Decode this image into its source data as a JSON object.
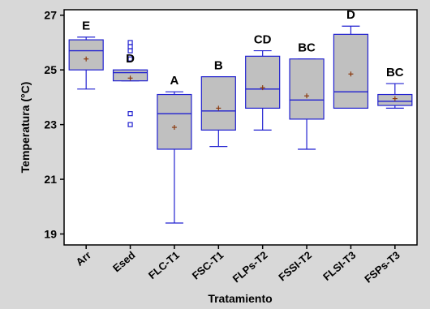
{
  "chart_data": {
    "type": "box",
    "xlabel": "Tratamiento",
    "ylabel": "Temperatura (°C)",
    "ylim": [
      18.6,
      27.2
    ],
    "yticks": [
      19,
      21,
      23,
      25,
      27
    ],
    "grid": false,
    "colors": {
      "box_fill": "#c0c0c0",
      "box_stroke": "#2020d0",
      "mean_marker": "#8b3a0f"
    },
    "categories": [
      "Arr",
      "Esed",
      "FLC-T1",
      "FSC-T1",
      "FLPs-T2",
      "FSSI-T2",
      "FLSI-T3",
      "FSPs-T3"
    ],
    "boxes": [
      {
        "category": "Arr",
        "whisker_low": 24.3,
        "q1": 25.0,
        "median": 25.7,
        "q3": 26.1,
        "whisker_high": 26.2,
        "mean": 25.4,
        "outliers": [],
        "letter": "E"
      },
      {
        "category": "Esed",
        "whisker_low": 24.6,
        "q1": 24.6,
        "median": 24.9,
        "q3": 25.0,
        "whisker_high": 25.0,
        "mean": 24.7,
        "outliers": [
          23.0,
          23.4,
          25.4,
          25.7,
          25.85,
          26.0
        ],
        "letter": "D"
      },
      {
        "category": "FLC-T1",
        "whisker_low": 19.4,
        "q1": 22.1,
        "median": 23.4,
        "q3": 24.1,
        "whisker_high": 24.2,
        "mean": 22.9,
        "outliers": [],
        "letter": "A"
      },
      {
        "category": "FSC-T1",
        "whisker_low": 22.2,
        "q1": 22.8,
        "median": 23.5,
        "q3": 24.75,
        "whisker_high": 24.75,
        "mean": 23.6,
        "outliers": [],
        "letter": "B"
      },
      {
        "category": "FLPs-T2",
        "whisker_low": 22.8,
        "q1": 23.6,
        "median": 24.3,
        "q3": 25.5,
        "whisker_high": 25.7,
        "mean": 24.35,
        "outliers": [],
        "letter": "CD"
      },
      {
        "category": "FSSI-T2",
        "whisker_low": 22.1,
        "q1": 23.2,
        "median": 23.9,
        "q3": 25.4,
        "whisker_high": 25.4,
        "mean": 24.05,
        "outliers": [],
        "letter": "BC"
      },
      {
        "category": "FLSI-T3",
        "whisker_low": 23.6,
        "q1": 23.6,
        "median": 24.2,
        "q3": 26.3,
        "whisker_high": 26.6,
        "mean": 24.85,
        "outliers": [],
        "letter": "D"
      },
      {
        "category": "FSPs-T3",
        "whisker_low": 23.6,
        "q1": 23.7,
        "median": 23.85,
        "q3": 24.1,
        "whisker_high": 24.5,
        "mean": 23.95,
        "outliers": [],
        "letter": "BC"
      }
    ]
  }
}
